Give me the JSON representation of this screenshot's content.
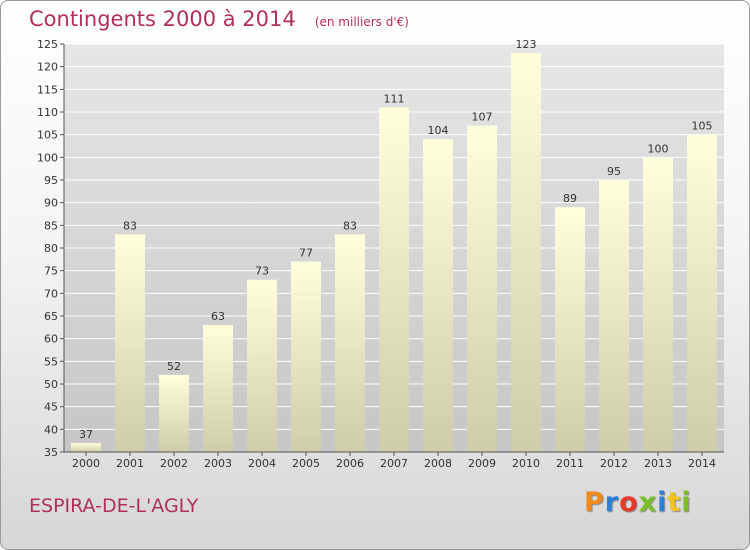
{
  "header": {
    "title": "Contingents 2000 à 2014",
    "unit": "(en milliers d'€)"
  },
  "footer": {
    "commune": "ESPIRA-DE-L'AGLY",
    "logo_letters": [
      "P",
      "r",
      "o",
      "x",
      "i",
      "t",
      "i"
    ],
    "logo_colors": [
      "#f28a1a",
      "#2a7fd6",
      "#e83a2a",
      "#7bbf2a",
      "#2a7fd6",
      "#f2c41a",
      "#7bbf2a"
    ]
  },
  "chart_data": {
    "type": "bar",
    "title": "Contingents 2000 à 2014",
    "subtitle": "(en milliers d'€)",
    "categories": [
      "2000",
      "2001",
      "2002",
      "2003",
      "2004",
      "2005",
      "2006",
      "2007",
      "2008",
      "2009",
      "2010",
      "2011",
      "2012",
      "2013",
      "2014"
    ],
    "values": [
      37,
      83,
      52,
      63,
      73,
      77,
      83,
      111,
      104,
      107,
      123,
      89,
      95,
      100,
      105
    ],
    "data_labels": [
      "37",
      "83",
      "52",
      "63",
      "73",
      "77",
      "83",
      "111",
      "104",
      "107",
      "123",
      "89",
      "95",
      "100",
      "105"
    ],
    "ylim": [
      35,
      125
    ],
    "yticks": [
      35,
      40,
      45,
      50,
      55,
      60,
      65,
      70,
      75,
      80,
      85,
      90,
      95,
      100,
      105,
      110,
      115,
      120,
      125
    ],
    "grid": true,
    "legend": "none",
    "colors": {
      "bar_top": "#ffffdc",
      "bar_bottom": "#cdcdaa",
      "grid": "#ffffff",
      "axis": "#555555"
    }
  }
}
